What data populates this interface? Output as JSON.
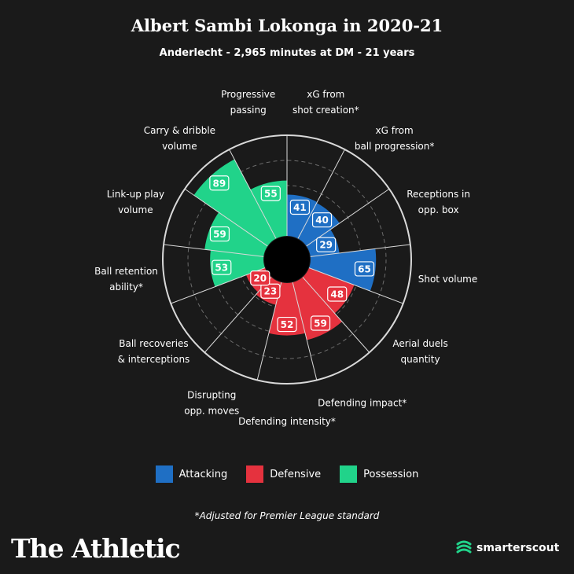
{
  "header": {
    "title": "Albert Sambi Lokonga in 2020-21",
    "subtitle": "Anderlecht - 2,965 minutes at DM - 21 years"
  },
  "colors": {
    "attacking": "#1f6fc4",
    "defensive": "#e5323e",
    "possession": "#21d38a",
    "background": "#1a1a1a"
  },
  "chart_data": {
    "type": "polar-bar",
    "scale": [
      0,
      100
    ],
    "categories": [
      {
        "label": "xG from shot creation*",
        "value": 41,
        "group": "attacking"
      },
      {
        "label": "xG from ball progression*",
        "value": 40,
        "group": "attacking"
      },
      {
        "label": "Receptions in opp. box",
        "value": 29,
        "group": "attacking"
      },
      {
        "label": "Shot volume",
        "value": 65,
        "group": "attacking"
      },
      {
        "label": "Aerial duels quantity",
        "value": 48,
        "group": "defensive"
      },
      {
        "label": "Defending impact*",
        "value": 59,
        "group": "defensive"
      },
      {
        "label": "Defending intensity*",
        "value": 52,
        "group": "defensive"
      },
      {
        "label": "Disrupting opp. moves",
        "value": 23,
        "group": "defensive"
      },
      {
        "label": "Ball recoveries & interceptions",
        "value": 20,
        "group": "defensive"
      },
      {
        "label": "Ball retention ability*",
        "value": 53,
        "group": "possession"
      },
      {
        "label": "Link-up play volume",
        "value": 59,
        "group": "possession"
      },
      {
        "label": "Carry & dribble volume",
        "value": 89,
        "group": "possession"
      },
      {
        "label": "Progressive passing",
        "value": 55,
        "group": "possession"
      }
    ]
  },
  "label_lines": [
    [
      "xG from",
      "shot creation*"
    ],
    [
      "xG from",
      "ball progression*"
    ],
    [
      "Receptions in",
      "opp. box"
    ],
    [
      "Shot volume"
    ],
    [
      "Aerial duels",
      "quantity"
    ],
    [
      "Defending impact*"
    ],
    [
      "Defending intensity*"
    ],
    [
      "Disrupting",
      "opp. moves"
    ],
    [
      "Ball recoveries",
      "& interceptions"
    ],
    [
      "Ball retention",
      "ability*"
    ],
    [
      "Link-up play",
      "volume"
    ],
    [
      "Carry & dribble",
      "volume"
    ],
    [
      "Progressive",
      "passing"
    ]
  ],
  "legend": {
    "attacking": "Attacking",
    "defensive": "Defensive",
    "possession": "Possession"
  },
  "footnote": "*Adjusted for Premier League standard",
  "branding": {
    "publisher": "The Athletic",
    "partner": "smarterscout"
  }
}
